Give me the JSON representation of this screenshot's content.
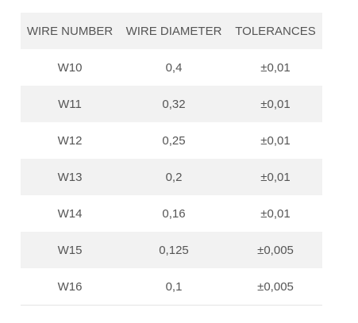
{
  "table": {
    "header": [
      "WIRE NUMBER",
      "WIRE DIAMETER",
      "TOLERANCES"
    ],
    "rows": [
      [
        "W10",
        "0,4",
        "±0,01"
      ],
      [
        "W11",
        "0,32",
        "±0,01"
      ],
      [
        "W12",
        "0,25",
        "±0,01"
      ],
      [
        "W13",
        "0,2",
        "±0,01"
      ],
      [
        "W14",
        "0,16",
        "±0,01"
      ],
      [
        "W15",
        "0,125",
        "±0,005"
      ],
      [
        "W16",
        "0,1",
        "±0,005"
      ]
    ]
  }
}
